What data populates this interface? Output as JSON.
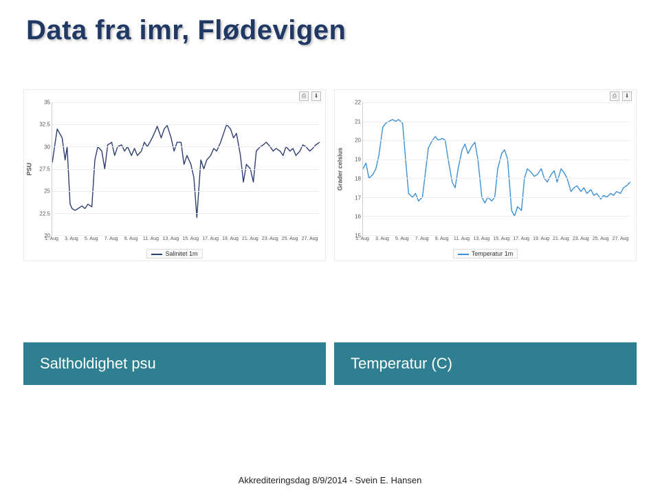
{
  "title": "Data fra imr, Flødevigen",
  "charts": [
    {
      "id": "salinity",
      "yaxis_label": "PSU",
      "line_color": "#2c3e70",
      "legend_label": "Salinitet 1m",
      "ylim": [
        20,
        35
      ],
      "yticks": [
        20,
        22.5,
        25,
        27.5,
        30,
        32.5,
        35
      ],
      "grid_color": "#eeeeee",
      "background_color": "#ffffff",
      "xtick_labels": [
        "1. Aug",
        "3. Aug",
        "5. Aug",
        "7. Aug",
        "9. Aug",
        "11. Aug",
        "13. Aug",
        "15. Aug",
        "17. Aug",
        "19. Aug",
        "21. Aug",
        "23. Aug",
        "25. Aug",
        "27. Aug"
      ],
      "x_range": [
        1,
        28
      ],
      "series": [
        [
          1,
          28.2
        ],
        [
          1.5,
          32.0
        ],
        [
          2,
          31.0
        ],
        [
          2.3,
          28.5
        ],
        [
          2.5,
          30.0
        ],
        [
          2.8,
          23.5
        ],
        [
          3,
          23.0
        ],
        [
          3.3,
          22.8
        ],
        [
          3.6,
          23.0
        ],
        [
          4,
          23.3
        ],
        [
          4.3,
          23.0
        ],
        [
          4.6,
          23.5
        ],
        [
          5,
          23.2
        ],
        [
          5.3,
          28.5
        ],
        [
          5.6,
          30.0
        ],
        [
          6,
          29.5
        ],
        [
          6.3,
          27.5
        ],
        [
          6.6,
          30.2
        ],
        [
          7,
          30.5
        ],
        [
          7.3,
          29.0
        ],
        [
          7.6,
          30.0
        ],
        [
          8,
          30.2
        ],
        [
          8.3,
          29.5
        ],
        [
          8.6,
          30.0
        ],
        [
          9,
          29.0
        ],
        [
          9.3,
          29.8
        ],
        [
          9.6,
          29.0
        ],
        [
          10,
          29.5
        ],
        [
          10.3,
          30.5
        ],
        [
          10.6,
          30.0
        ],
        [
          11,
          30.8
        ],
        [
          11.3,
          31.5
        ],
        [
          11.6,
          32.3
        ],
        [
          12,
          31.0
        ],
        [
          12.3,
          32.0
        ],
        [
          12.6,
          32.4
        ],
        [
          13,
          31.0
        ],
        [
          13.3,
          29.5
        ],
        [
          13.6,
          30.5
        ],
        [
          14,
          30.5
        ],
        [
          14.3,
          28.0
        ],
        [
          14.6,
          29.0
        ],
        [
          15,
          28.0
        ],
        [
          15.3,
          26.5
        ],
        [
          15.6,
          22.0
        ],
        [
          16,
          28.5
        ],
        [
          16.3,
          27.5
        ],
        [
          16.6,
          28.5
        ],
        [
          17,
          29.0
        ],
        [
          17.3,
          29.8
        ],
        [
          17.6,
          29.5
        ],
        [
          18,
          30.5
        ],
        [
          18.3,
          31.5
        ],
        [
          18.6,
          32.5
        ],
        [
          19,
          32.0
        ],
        [
          19.3,
          31.0
        ],
        [
          19.6,
          31.5
        ],
        [
          20,
          29.0
        ],
        [
          20.3,
          26.0
        ],
        [
          20.6,
          28.0
        ],
        [
          21,
          27.5
        ],
        [
          21.3,
          26.0
        ],
        [
          21.6,
          29.5
        ],
        [
          22,
          30.0
        ],
        [
          22.3,
          30.2
        ],
        [
          22.6,
          30.5
        ],
        [
          23,
          30.0
        ],
        [
          23.3,
          29.5
        ],
        [
          23.6,
          29.8
        ],
        [
          24,
          29.5
        ],
        [
          24.3,
          29.0
        ],
        [
          24.6,
          30.0
        ],
        [
          25,
          29.5
        ],
        [
          25.3,
          29.8
        ],
        [
          25.6,
          29.0
        ],
        [
          26,
          29.5
        ],
        [
          26.3,
          30.2
        ],
        [
          26.6,
          30.0
        ],
        [
          27,
          29.5
        ],
        [
          27.3,
          29.8
        ],
        [
          27.6,
          30.2
        ],
        [
          28,
          30.5
        ]
      ]
    },
    {
      "id": "temperature",
      "yaxis_label": "Grader celsius",
      "line_color": "#3a8fd6",
      "legend_label": "Temperatur 1m",
      "ylim": [
        15,
        22
      ],
      "yticks": [
        15,
        16,
        17,
        18,
        19,
        20,
        21,
        22
      ],
      "grid_color": "#eeeeee",
      "background_color": "#ffffff",
      "xtick_labels": [
        "1. Aug",
        "3. Aug",
        "5. Aug",
        "7. Aug",
        "9. Aug",
        "11. Aug",
        "13. Aug",
        "15. Aug",
        "17. Aug",
        "19. Aug",
        "21. Aug",
        "23. Aug",
        "25. Aug",
        "27. Aug"
      ],
      "x_range": [
        1,
        28
      ],
      "series": [
        [
          1,
          18.5
        ],
        [
          1.3,
          18.8
        ],
        [
          1.6,
          18.0
        ],
        [
          2,
          18.2
        ],
        [
          2.3,
          18.5
        ],
        [
          2.6,
          19.2
        ],
        [
          3,
          20.7
        ],
        [
          3.3,
          20.9
        ],
        [
          3.6,
          21.0
        ],
        [
          4,
          21.1
        ],
        [
          4.3,
          21.0
        ],
        [
          4.6,
          21.1
        ],
        [
          5,
          20.9
        ],
        [
          5.3,
          19.0
        ],
        [
          5.6,
          17.2
        ],
        [
          6,
          17.0
        ],
        [
          6.3,
          17.2
        ],
        [
          6.6,
          16.8
        ],
        [
          7,
          17.0
        ],
        [
          7.3,
          18.3
        ],
        [
          7.6,
          19.6
        ],
        [
          8,
          20.0
        ],
        [
          8.3,
          20.2
        ],
        [
          8.6,
          20.0
        ],
        [
          9,
          20.1
        ],
        [
          9.3,
          20.0
        ],
        [
          9.6,
          19.0
        ],
        [
          10,
          17.8
        ],
        [
          10.3,
          17.5
        ],
        [
          10.6,
          18.5
        ],
        [
          11,
          19.5
        ],
        [
          11.3,
          19.8
        ],
        [
          11.6,
          19.3
        ],
        [
          12,
          19.7
        ],
        [
          12.3,
          19.9
        ],
        [
          12.6,
          19.0
        ],
        [
          13,
          17.0
        ],
        [
          13.3,
          16.7
        ],
        [
          13.6,
          17.0
        ],
        [
          14,
          16.8
        ],
        [
          14.3,
          17.0
        ],
        [
          14.6,
          18.5
        ],
        [
          15,
          19.3
        ],
        [
          15.3,
          19.5
        ],
        [
          15.6,
          19.0
        ],
        [
          16,
          16.3
        ],
        [
          16.3,
          16.0
        ],
        [
          16.6,
          16.5
        ],
        [
          17,
          16.3
        ],
        [
          17.3,
          18.0
        ],
        [
          17.6,
          18.5
        ],
        [
          18,
          18.3
        ],
        [
          18.3,
          18.1
        ],
        [
          18.6,
          18.2
        ],
        [
          19,
          18.5
        ],
        [
          19.3,
          18.0
        ],
        [
          19.6,
          17.8
        ],
        [
          20,
          18.2
        ],
        [
          20.3,
          18.4
        ],
        [
          20.6,
          17.8
        ],
        [
          21,
          18.5
        ],
        [
          21.3,
          18.3
        ],
        [
          21.6,
          18.0
        ],
        [
          22,
          17.3
        ],
        [
          22.3,
          17.5
        ],
        [
          22.6,
          17.6
        ],
        [
          23,
          17.3
        ],
        [
          23.3,
          17.5
        ],
        [
          23.6,
          17.2
        ],
        [
          24,
          17.4
        ],
        [
          24.3,
          17.1
        ],
        [
          24.6,
          17.2
        ],
        [
          25,
          16.9
        ],
        [
          25.3,
          17.1
        ],
        [
          25.6,
          17.0
        ],
        [
          26,
          17.2
        ],
        [
          26.3,
          17.1
        ],
        [
          26.6,
          17.3
        ],
        [
          27,
          17.2
        ],
        [
          27.3,
          17.5
        ],
        [
          27.6,
          17.6
        ],
        [
          28,
          17.8
        ]
      ]
    }
  ],
  "captions": {
    "left": "Saltholdighet psu",
    "right": "Temperatur (C)",
    "bg_color": "#2e7f8f",
    "text_color": "#ffffff"
  },
  "footer": "Akkrediteringsdag 8/9/2014 - Svein E. Hansen",
  "icons": {
    "print": "⎙",
    "download": "⬇"
  }
}
